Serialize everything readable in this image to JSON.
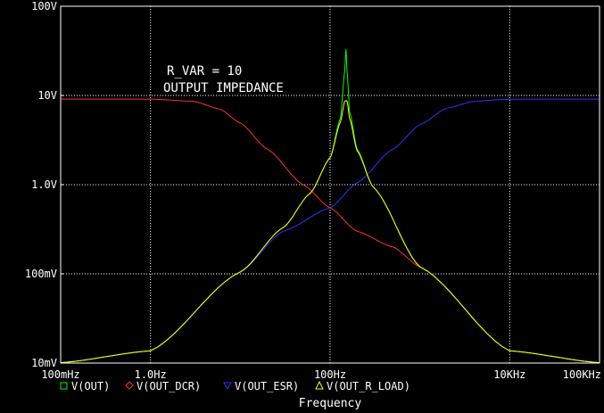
{
  "chart_data": {
    "type": "line",
    "x_scale": "log",
    "y_scale": "log",
    "xlim": [
      0.1,
      100000
    ],
    "ylim": [
      0.01,
      100
    ],
    "grid": true,
    "xlabel": "Frequency",
    "ylabel": "",
    "x_ticks": [
      {
        "value": 0.1,
        "label": "100mHz"
      },
      {
        "value": 1,
        "label": "1.0Hz"
      },
      {
        "value": 100,
        "label": "100Hz"
      },
      {
        "value": 10000,
        "label": "10KHz"
      },
      {
        "value": 100000,
        "label": "100KHz"
      }
    ],
    "y_ticks": [
      {
        "value": 0.01,
        "label": "10mV"
      },
      {
        "value": 0.1,
        "label": "100mV"
      },
      {
        "value": 1,
        "label": "1.0V"
      },
      {
        "value": 10,
        "label": "10V"
      },
      {
        "value": 100,
        "label": "100V"
      }
    ],
    "annotations": [
      "R_VAR = 10",
      "OUTPUT IMPEDANCE"
    ],
    "series": [
      {
        "name": "V(OUT)",
        "color": "#00ff00",
        "marker": "square",
        "x": [
          0.1,
          1,
          10,
          30,
          60,
          100,
          130,
          145,
          150,
          155,
          165,
          200,
          300,
          1000,
          10000,
          100000
        ],
        "y": [
          0.0101,
          0.0137,
          0.105,
          0.33,
          0.8,
          2.0,
          5.5,
          18,
          33,
          18,
          6.5,
          2.5,
          0.95,
          0.12,
          0.0137,
          0.0101
        ]
      },
      {
        "name": "V(OUT_DCR)",
        "color": "#ff3030",
        "marker": "diamond",
        "x": [
          0.1,
          1,
          3,
          6,
          10,
          20,
          50,
          100,
          200,
          500,
          1000,
          10000,
          100000
        ],
        "y": [
          9.1,
          9.1,
          8.6,
          7.0,
          4.9,
          2.5,
          1.0,
          0.55,
          0.3,
          0.2,
          0.12,
          0.0137,
          0.0101
        ]
      },
      {
        "name": "V(OUT_ESR)",
        "color": "#3030ff",
        "marker": "triangle-down",
        "x": [
          0.1,
          1,
          10,
          30,
          100,
          200,
          500,
          1000,
          2000,
          4000,
          8000,
          15000,
          100000
        ],
        "y": [
          0.0101,
          0.0137,
          0.105,
          0.3,
          0.55,
          1.05,
          2.5,
          4.7,
          7.2,
          8.6,
          9.0,
          9.1,
          9.1
        ]
      },
      {
        "name": "V(OUT_R_LOAD)",
        "color": "#ffff00",
        "marker": "triangle-up",
        "x": [
          0.1,
          1,
          10,
          30,
          60,
          100,
          130,
          145,
          150,
          155,
          165,
          200,
          300,
          1000,
          10000,
          100000
        ],
        "y": [
          0.0101,
          0.0137,
          0.105,
          0.33,
          0.8,
          2.0,
          5.0,
          8.5,
          8.8,
          8.5,
          5.5,
          2.4,
          0.95,
          0.12,
          0.0137,
          0.0101
        ]
      }
    ]
  },
  "colors": {
    "background": "#000000",
    "frame": "#ffffff",
    "grid": "#ffffff",
    "text": "#ffffff"
  }
}
